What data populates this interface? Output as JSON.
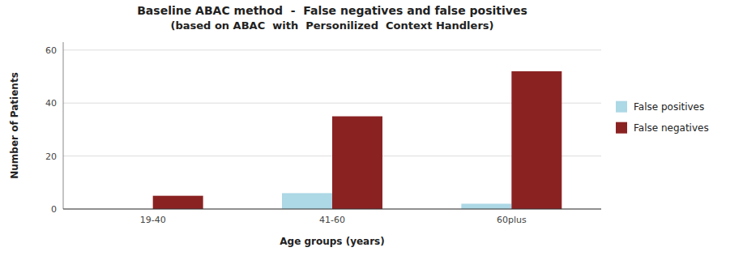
{
  "chart_data": {
    "type": "bar",
    "title": "Baseline ABAC method  -  False negatives and false positives",
    "subtitle": "(based on ABAC  with  Personilized  Context Handlers)",
    "categories": [
      "19-40",
      "41-60",
      "60plus"
    ],
    "series": [
      {
        "name": "False positives",
        "color": "#add8e6",
        "values": [
          0,
          6,
          2
        ]
      },
      {
        "name": "False negatives",
        "color": "#8b2222",
        "values": [
          5,
          35,
          52
        ]
      }
    ],
    "x_label": "Age groups (years)",
    "y_label": "Number of Patients",
    "ylim": [
      0,
      63
    ],
    "yticks": [
      0,
      20,
      40,
      60
    ],
    "grid": true,
    "legend": "right"
  }
}
